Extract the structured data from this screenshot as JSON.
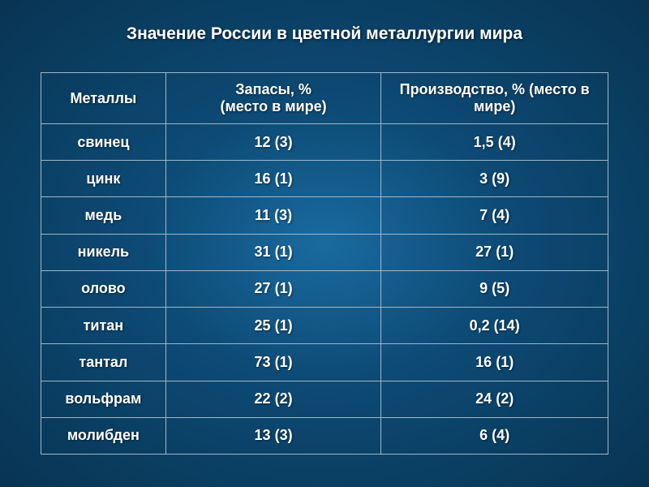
{
  "slide": {
    "title": "Значение России в цветной металлургии мира",
    "title_fontsize": 21,
    "title_color": "#ffffff",
    "background_gradient": [
      "#1a6ba0",
      "#0d4a75",
      "#083452"
    ]
  },
  "table": {
    "type": "table",
    "border_color": "#9fb8c9",
    "text_color": "#ffffff",
    "cell_fontsize": 18,
    "header_fontsize": 18,
    "columns": [
      {
        "key": "metal",
        "label": "Металлы",
        "width_pct": 22
      },
      {
        "key": "reserves",
        "label": "Запасы, %\n(место в мире)",
        "width_pct": 38
      },
      {
        "key": "production",
        "label": "Производство, % (место в мире)",
        "width_pct": 40
      }
    ],
    "rows": [
      {
        "metal": "свинец",
        "reserves": "12 (3)",
        "production": "1,5 (4)"
      },
      {
        "metal": "цинк",
        "reserves": "16 (1)",
        "production": "3 (9)"
      },
      {
        "metal": "медь",
        "reserves": "11 (3)",
        "production": "7 (4)"
      },
      {
        "metal": "никель",
        "reserves": "31 (1)",
        "production": "27 (1)"
      },
      {
        "metal": "олово",
        "reserves": "27 (1)",
        "production": "9 (5)"
      },
      {
        "metal": "титан",
        "reserves": "25 (1)",
        "production": "0,2 (14)"
      },
      {
        "metal": "тантал",
        "reserves": "73 (1)",
        "production": "16 (1)"
      },
      {
        "metal": "вольфрам",
        "reserves": "22 (2)",
        "production": "24 (2)"
      },
      {
        "metal": "молибден",
        "reserves": "13 (3)",
        "production": "6 (4)"
      }
    ]
  }
}
